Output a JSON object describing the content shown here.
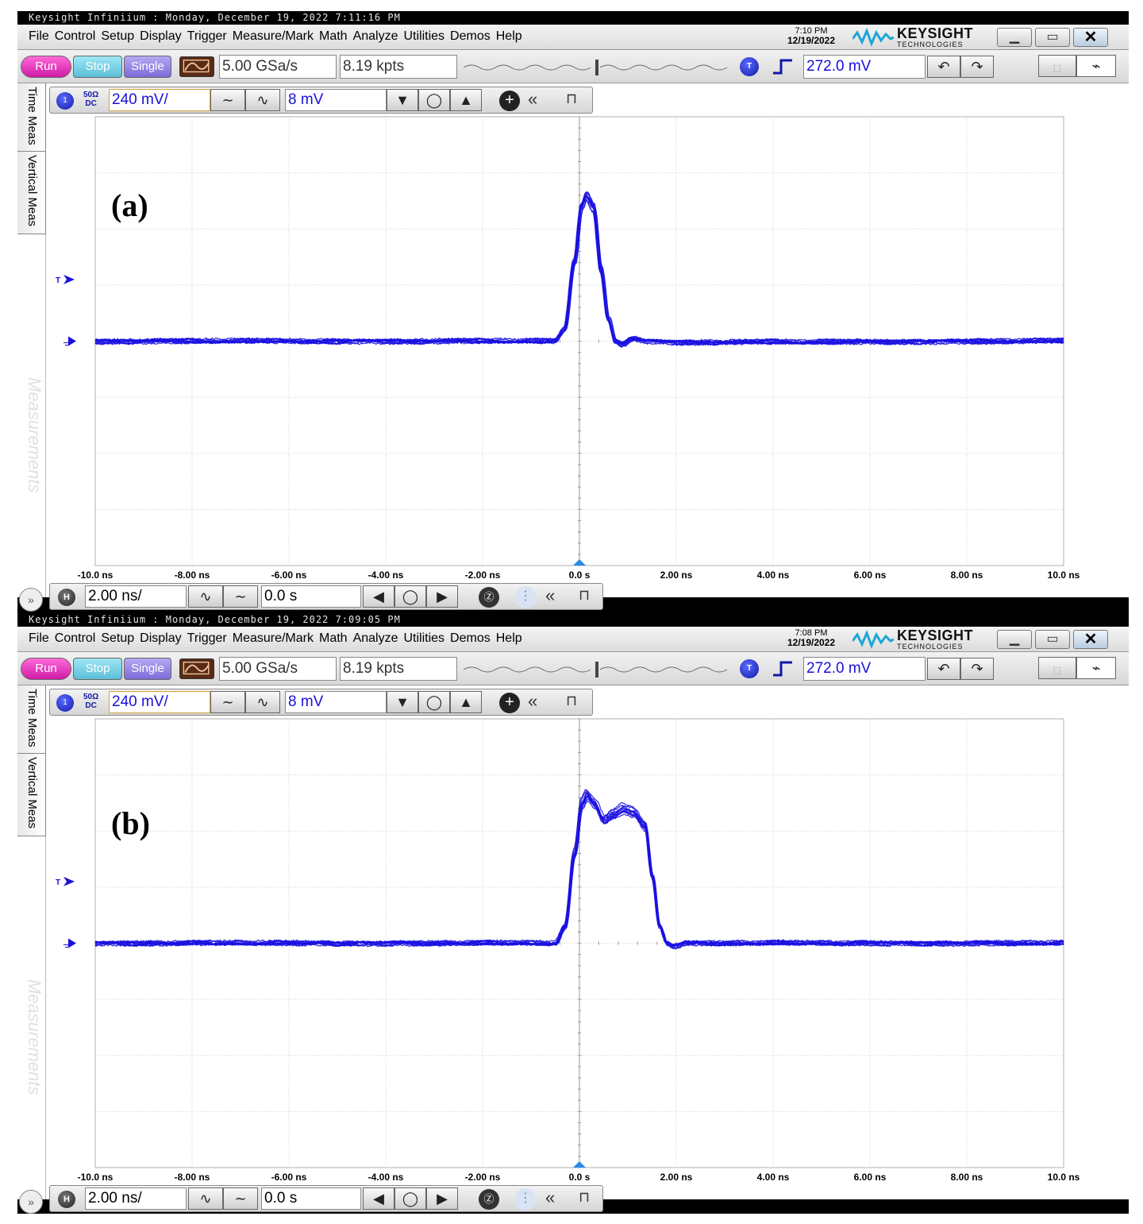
{
  "screens": [
    {
      "title_bar": "Keysight Infiniium : Monday, December 19, 2022 7:11:16 PM",
      "menu": [
        "File",
        "Control",
        "Setup",
        "Display",
        "Trigger",
        "Measure/Mark",
        "Math",
        "Analyze",
        "Utilities",
        "Demos",
        "Help"
      ],
      "clock_time": "7:10 PM",
      "clock_date": "12/19/2022",
      "brand": "KEYSIGHT",
      "brand_sub": "TECHNOLOGIES",
      "run_label": "Run",
      "stop_label": "Stop",
      "single_label": "Single",
      "sample_rate": "5.00 GSa/s",
      "memory_depth": "8.19 kpts",
      "trigger_badge": "T",
      "trigger_level": "272.0 mV",
      "side_tab_1": "Time Meas",
      "side_tab_2": "Vertical Meas",
      "side_panel": "Measurements",
      "channel_number": "1",
      "channel_impedance": "50Ω",
      "channel_coupling": "DC",
      "vertical_scale": "240 mV/",
      "vertical_offset": "8 mV",
      "trigger_marker": "T",
      "panel_label": "(a)",
      "horizontal_badge": "H",
      "horizontal_scale": "2.00 ns/",
      "horizontal_position": "0.0 s"
    },
    {
      "title_bar": "Keysight Infiniium : Monday, December 19, 2022 7:09:05 PM",
      "menu": [
        "File",
        "Control",
        "Setup",
        "Display",
        "Trigger",
        "Measure/Mark",
        "Math",
        "Analyze",
        "Utilities",
        "Demos",
        "Help"
      ],
      "clock_time": "7:08 PM",
      "clock_date": "12/19/2022",
      "brand": "KEYSIGHT",
      "brand_sub": "TECHNOLOGIES",
      "run_label": "Run",
      "stop_label": "Stop",
      "single_label": "Single",
      "sample_rate": "5.00 GSa/s",
      "memory_depth": "8.19 kpts",
      "trigger_badge": "T",
      "trigger_level": "272.0 mV",
      "side_tab_1": "Time Meas",
      "side_tab_2": "Vertical Meas",
      "side_panel": "Measurements",
      "channel_number": "1",
      "channel_impedance": "50Ω",
      "channel_coupling": "DC",
      "vertical_scale": "240 mV/",
      "vertical_offset": "8 mV",
      "trigger_marker": "T",
      "panel_label": "(b)",
      "horizontal_badge": "H",
      "horizontal_scale": "2.00 ns/",
      "horizontal_position": "0.0 s"
    }
  ],
  "chart_data": [
    {
      "type": "line",
      "x_unit": "ns",
      "xlim": [
        -10,
        10
      ],
      "ylim_div": [
        -4,
        4
      ],
      "x_tick_labels": [
        "-10.0 ns",
        "-8.00 ns",
        "-6.00 ns",
        "-4.00 ns",
        "-2.00 ns",
        "0.0 s",
        "2.00 ns",
        "4.00 ns",
        "6.00 ns",
        "8.00 ns",
        "10.0 ns"
      ],
      "grid": true,
      "trace_color": "#1a10e0",
      "trigger_level_div": 1.1,
      "x": [
        -10,
        -0.5,
        -0.3,
        -0.1,
        0.05,
        0.15,
        0.3,
        0.45,
        0.6,
        0.75,
        0.9,
        1.1,
        1.4,
        2,
        10
      ],
      "y_div": [
        0,
        0,
        0.2,
        1.4,
        2.4,
        2.6,
        2.4,
        1.3,
        0.4,
        0.0,
        -0.05,
        0.05,
        0.0,
        -0.02,
        0
      ],
      "traces": 12
    },
    {
      "type": "line",
      "x_unit": "ns",
      "xlim": [
        -10,
        10
      ],
      "ylim_div": [
        -4,
        4
      ],
      "x_tick_labels": [
        "-10.0 ns",
        "-8.00 ns",
        "-6.00 ns",
        "-4.00 ns",
        "-2.00 ns",
        "0.0 s",
        "2.00 ns",
        "4.00 ns",
        "6.00 ns",
        "8.00 ns",
        "10.0 ns"
      ],
      "grid": true,
      "trace_color": "#1a10e0",
      "trigger_level_div": 1.1,
      "x": [
        -10,
        -0.5,
        -0.3,
        -0.1,
        0.05,
        0.15,
        0.3,
        0.5,
        0.7,
        0.9,
        1.1,
        1.35,
        1.5,
        1.65,
        1.8,
        1.95,
        2.2,
        10
      ],
      "y_div": [
        0,
        0,
        0.3,
        1.6,
        2.5,
        2.65,
        2.5,
        2.2,
        2.3,
        2.4,
        2.35,
        2.1,
        1.2,
        0.3,
        0.0,
        -0.05,
        0.0,
        0
      ],
      "traces": 12
    }
  ]
}
